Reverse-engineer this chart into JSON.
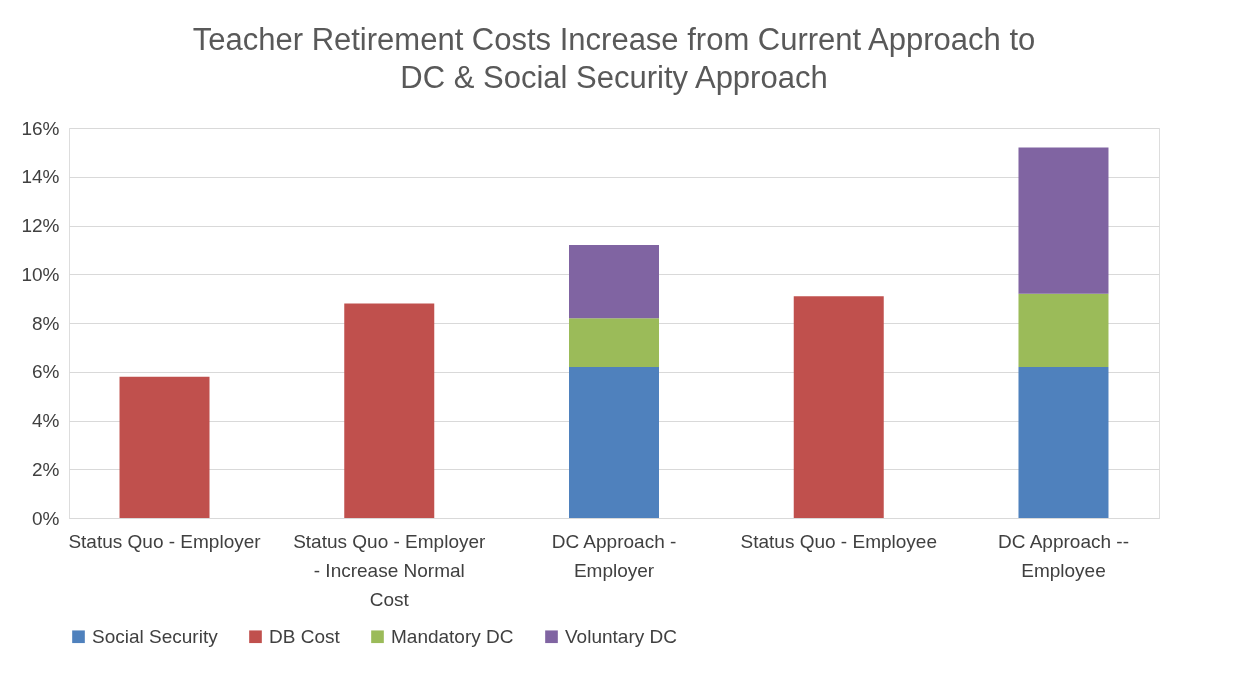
{
  "chart_data": {
    "type": "bar",
    "title": [
      "Teacher Retirement Costs Increase from Current Approach to",
      "DC & Social Security Approach"
    ],
    "categories": [
      "Status Quo - Employer",
      "Status Quo - Employer - Increase Normal Cost",
      "DC Approach - Employer",
      "Status Quo - Employee",
      "DC Approach -- Employee"
    ],
    "stacked": true,
    "series": [
      {
        "name": "Social Security",
        "color": "#4f81bd",
        "values": [
          null,
          null,
          6.2,
          null,
          6.2
        ]
      },
      {
        "name": "DB Cost",
        "color": "#c0504d",
        "values": [
          5.8,
          8.8,
          null,
          9.1,
          null
        ]
      },
      {
        "name": "Mandatory DC",
        "color": "#9bbb59",
        "values": [
          null,
          null,
          2.0,
          null,
          3.0
        ]
      },
      {
        "name": "Voluntary DC",
        "color": "#8064a2",
        "values": [
          null,
          null,
          3.0,
          null,
          6.0
        ]
      }
    ],
    "ylim": [
      0,
      16
    ],
    "yticks": [
      {
        "value": 0,
        "label": "0%"
      },
      {
        "value": 2,
        "label": "2%"
      },
      {
        "value": 4,
        "label": "4%"
      },
      {
        "value": 6,
        "label": "6%"
      },
      {
        "value": 8,
        "label": "8%"
      },
      {
        "value": 10,
        "label": "10%"
      },
      {
        "value": 12,
        "label": "12%"
      },
      {
        "value": 14,
        "label": "14%"
      },
      {
        "value": 16,
        "label": "16%"
      }
    ],
    "grid": "y",
    "legend": "bottom"
  }
}
